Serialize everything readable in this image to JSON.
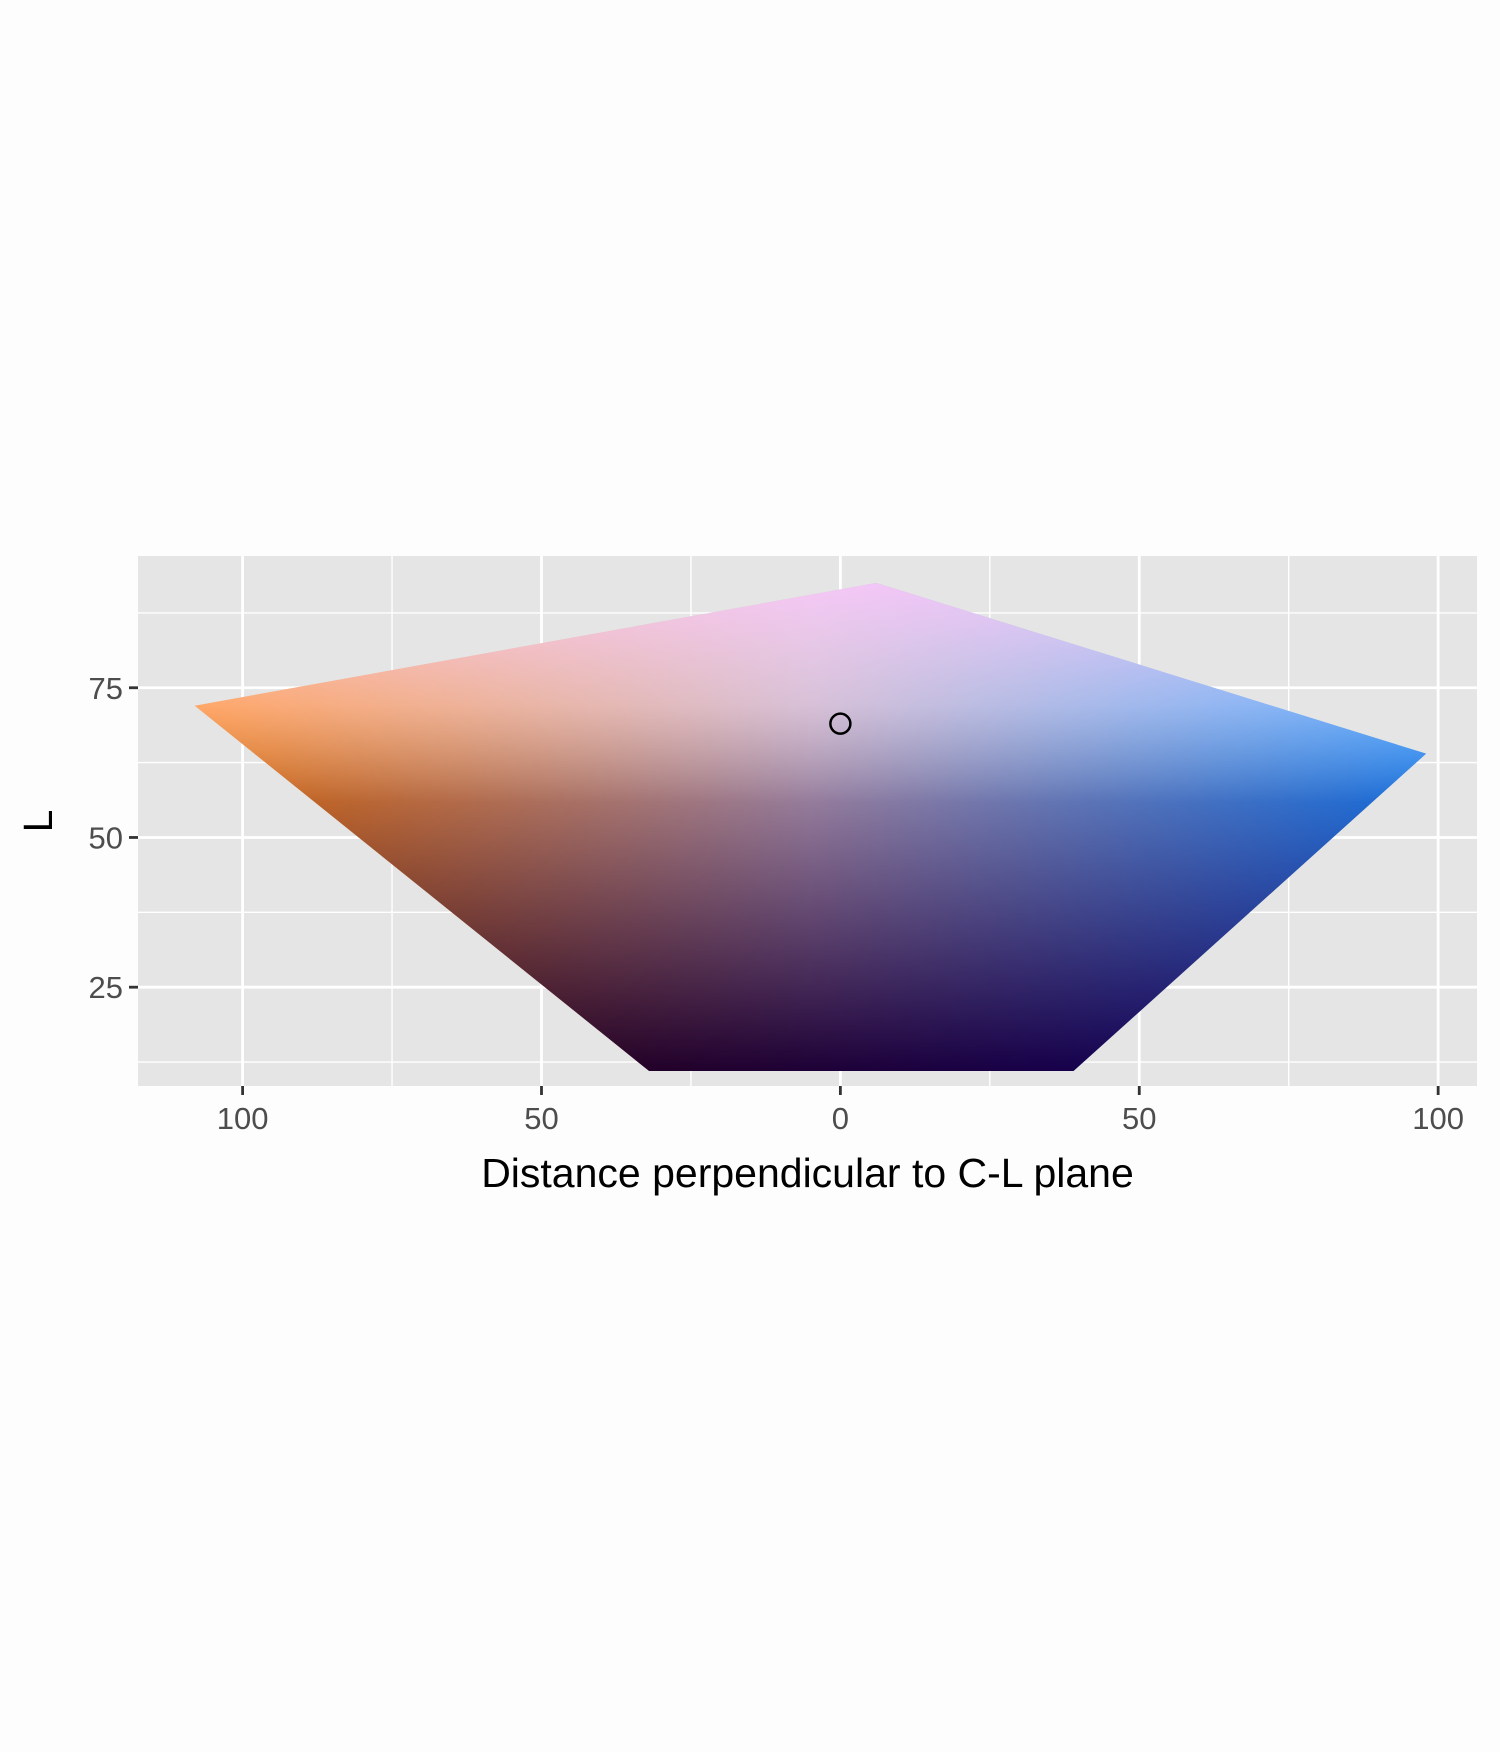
{
  "chart_data": {
    "type": "scatter",
    "title": "",
    "xlabel": "Distance perpendicular to C-L plane",
    "ylabel": "L",
    "x_tick_labels": [
      "100",
      "50",
      "0",
      "50",
      "100"
    ],
    "x_tick_values": [
      -100,
      -50,
      0,
      50,
      100
    ],
    "y_tick_labels": [
      "25",
      "50",
      "75"
    ],
    "y_tick_values": [
      25,
      50,
      75
    ],
    "xlim": [
      -117.5,
      106.5
    ],
    "ylim": [
      8.5,
      97
    ],
    "grid": true,
    "panel_background": "#e5e5e5",
    "grid_color": "#ffffff",
    "gamut_region": {
      "outline": [
        {
          "x": -108,
          "y": 72
        },
        {
          "x": 6,
          "y": 92.5
        },
        {
          "x": 98,
          "y": 64
        },
        {
          "x": 39,
          "y": 11
        },
        {
          "x": -32,
          "y": 11
        }
      ],
      "color_stops": {
        "top": "#ffccff",
        "left": "#ff8010",
        "right": "#1a90ff",
        "bottom_left": "#2d0005",
        "bottom_right": "#0d0066"
      }
    },
    "reference_point": {
      "x": 0,
      "y": 69,
      "style": "open-circle",
      "color": "#000000"
    }
  }
}
